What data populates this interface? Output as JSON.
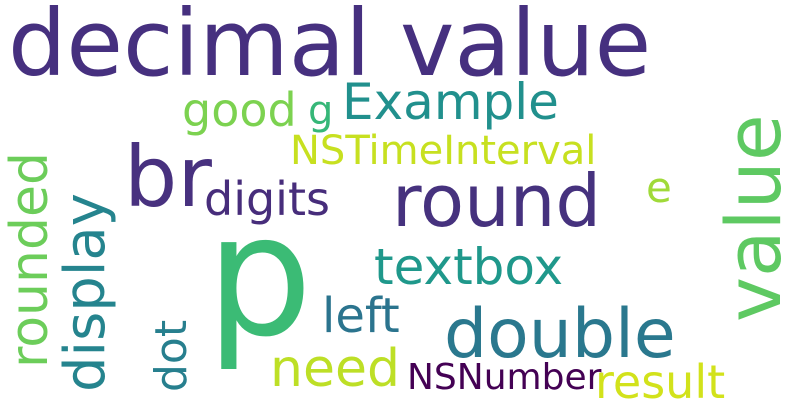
{
  "words": {
    "decimal_value": {
      "text": "decimal value",
      "color": "#46307f"
    },
    "example": {
      "text": "Example",
      "color": "#21908d"
    },
    "good": {
      "text": "good",
      "color": "#7cd250"
    },
    "g": {
      "text": "g",
      "color": "#36b778"
    },
    "br": {
      "text": "br",
      "color": "#48317f"
    },
    "nstimeinterval": {
      "text": "NSTimeInterval",
      "color": "#c7e020"
    },
    "round": {
      "text": "round",
      "color": "#46327e"
    },
    "digits": {
      "text": "digits",
      "color": "#472d7b"
    },
    "e": {
      "text": "e",
      "color": "#a0da39"
    },
    "textbox": {
      "text": "textbox",
      "color": "#1f988b"
    },
    "left": {
      "text": "left",
      "color": "#2b748e"
    },
    "double": {
      "text": "double",
      "color": "#2a788e"
    },
    "need": {
      "text": "need",
      "color": "#bddf26"
    },
    "nsnumber": {
      "text": "NSNumber",
      "color": "#440154"
    },
    "result": {
      "text": "result",
      "color": "#d2e21b"
    },
    "p": {
      "text": "p",
      "color": "#3bbb75"
    },
    "value": {
      "text": "value",
      "color": "#5ec962"
    },
    "rounded": {
      "text": "rounded",
      "color": "#6ccd5a"
    },
    "display": {
      "text": "display",
      "color": "#25848e"
    },
    "dot": {
      "text": "dot",
      "color": "#277f8e"
    }
  }
}
